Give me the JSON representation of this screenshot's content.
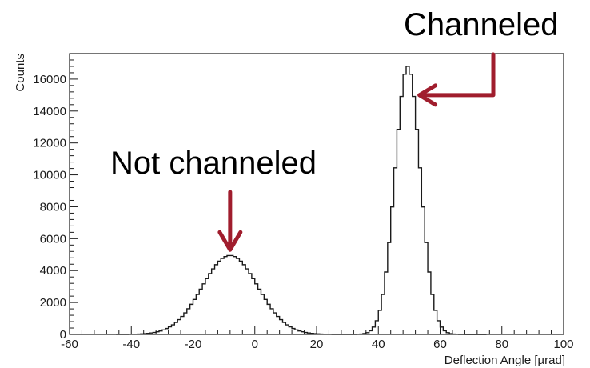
{
  "chart_data": {
    "type": "histogram",
    "xlabel": "Deflection Angle [µrad]",
    "ylabel": "Counts",
    "xlim": [
      -60,
      100
    ],
    "ylim": [
      0,
      17600
    ],
    "x_ticks": [
      -60,
      -40,
      -20,
      0,
      20,
      40,
      60,
      80,
      100
    ],
    "y_ticks": [
      0,
      2000,
      4000,
      6000,
      8000,
      10000,
      12000,
      14000,
      16000
    ],
    "grid": false,
    "bin_width": 1,
    "series": [
      {
        "peaks": [
          {
            "label": "Not channeled",
            "center": -8,
            "sigma": 9,
            "height": 4950
          },
          {
            "label": "Channeled",
            "center": 49.5,
            "sigma": 4.1,
            "height": 16800
          }
        ]
      }
    ],
    "annotations": [
      {
        "text": "Not channeled",
        "arrow_to": [
          -8,
          5000
        ]
      },
      {
        "text": "Channeled",
        "arrow_to": [
          52,
          15000
        ]
      }
    ],
    "colors": {
      "line": "#1a1a1a",
      "arrow": "#a01d2d"
    }
  }
}
